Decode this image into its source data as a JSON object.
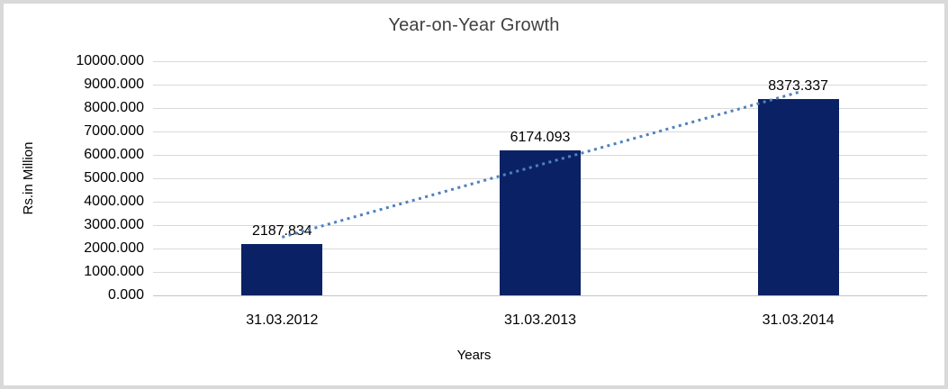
{
  "chart_data": {
    "type": "bar",
    "title": "Year-on-Year Growth",
    "categories": [
      "31.03.2012",
      "31.03.2013",
      "31.03.2014"
    ],
    "values": [
      2187.834,
      6174.093,
      8373.337
    ],
    "data_labels": [
      "2187.834",
      "6174.093",
      "8373.337"
    ],
    "xlabel": "Years",
    "ylabel": "Rs.in Million",
    "ylim": [
      0,
      10000
    ],
    "ytick_step": 1000,
    "ytick_labels": [
      "0.000",
      "1000.000",
      "2000.000",
      "3000.000",
      "4000.000",
      "5000.000",
      "6000.000",
      "7000.000",
      "8000.000",
      "9000.000",
      "10000.000"
    ],
    "grid": true,
    "legend": "none",
    "trendline": {
      "type": "linear",
      "style": "dotted"
    },
    "colors": {
      "bar": "#0A2265",
      "trendline": "#4F81BD",
      "gridline": "#D9D9D9",
      "title_text": "#404040",
      "axis_text": "#000000",
      "frame_border": "#D9D9D9",
      "background": "#FFFFFF"
    }
  }
}
